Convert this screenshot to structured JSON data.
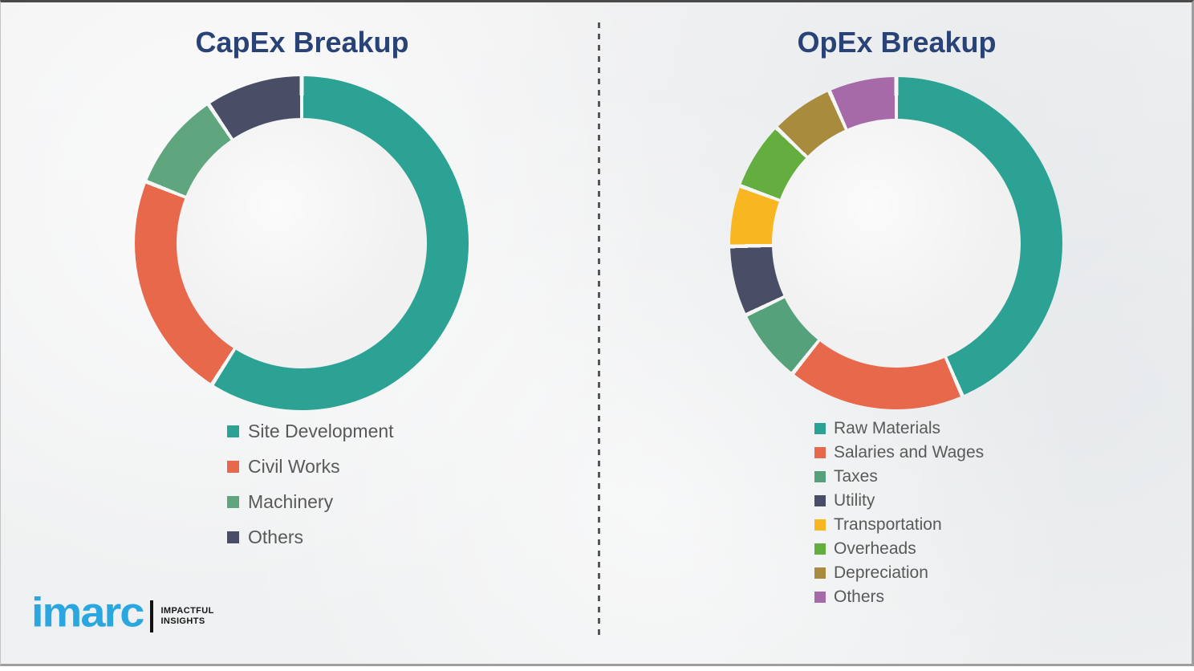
{
  "page": {
    "background_color": "#f1f1f2",
    "divider_style": "vertical-dashed-line",
    "divider_color": "#575757",
    "title_color": "#2a4377",
    "legend_text_color": "#595959"
  },
  "chart_data": [
    {
      "type": "pie",
      "subtype": "donut",
      "title": "CapEx Breakup",
      "labels": [
        "Site Development",
        "Civil Works",
        "Machinery",
        "Others"
      ],
      "values": [
        59,
        22,
        9.6,
        9.4
      ],
      "unit": "percent-of-ring",
      "colors": [
        "#2ba294",
        "#e7684b",
        "#5fa57d",
        "#494e66"
      ],
      "start_angle_deg": 0,
      "direction": "clockwise",
      "legend_position": "below-left",
      "data_labels_shown": false
    },
    {
      "type": "pie",
      "subtype": "donut",
      "title": "OpEx Breakup",
      "labels": [
        "Raw Materials",
        "Salaries and Wages",
        "Taxes",
        "Utility",
        "Transportation",
        "Overheads",
        "Depreciation",
        "Others"
      ],
      "values": [
        43.5,
        17.2,
        7.2,
        6.8,
        5.9,
        6.6,
        6.2,
        6.6
      ],
      "unit": "percent-of-ring",
      "colors": [
        "#2ba294",
        "#e7684b",
        "#55a17c",
        "#494e66",
        "#f8b620",
        "#64ad3f",
        "#a88b3c",
        "#a66aa9"
      ],
      "start_angle_deg": 0,
      "direction": "clockwise",
      "legend_position": "below-left",
      "data_labels_shown": false
    }
  ],
  "logo": {
    "brand": "imarc",
    "brand_color": "#2ba7e0",
    "tagline_line1": "IMPACTFUL",
    "tagline_line2": "INSIGHTS"
  }
}
